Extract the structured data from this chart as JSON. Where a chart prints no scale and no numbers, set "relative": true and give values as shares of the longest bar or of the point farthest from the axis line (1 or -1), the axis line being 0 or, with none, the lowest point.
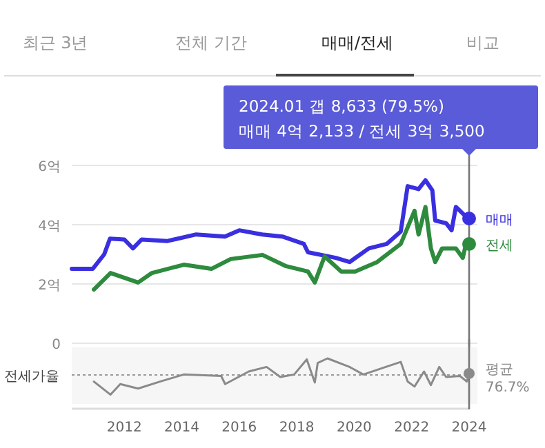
{
  "chart_data": [
    {
      "type": "line",
      "annotations": [
        "최근 3년",
        "전체 기간",
        "매매/전세",
        "비교",
        "2024.01  갭 8,633 (79.5%)",
        "매매 4억 2,133 / 전세 3억 3,500"
      ],
      "xlim": [
        2010.17,
        2024.0
      ],
      "ylim": [
        0,
        6
      ],
      "yticks": [
        {
          "value": 0,
          "label": "0"
        },
        {
          "value": 2,
          "label": "2억"
        },
        {
          "value": 4,
          "label": "4억"
        },
        {
          "value": 6,
          "label": "6억"
        }
      ],
      "tick_labels": "y",
      "grid": "y",
      "legend": false,
      "marker": "none",
      "line_style": "solid",
      "ref_lines": [
        {
          "axis": "x",
          "value": 2024.0,
          "color": "#777777"
        }
      ],
      "series": [
        {
          "name": "매매",
          "color": "#3a2fe0",
          "x": [
            2010.17,
            2010.9,
            2011.3,
            2011.5,
            2012.0,
            2012.3,
            2012.6,
            2013.5,
            2014.5,
            2015.5,
            2016.0,
            2016.8,
            2017.5,
            2018.25,
            2018.39,
            2019.36,
            2019.84,
            2020.51,
            2021.13,
            2021.62,
            2021.86,
            2022.24,
            2022.48,
            2022.72,
            2022.82,
            2023.2,
            2023.39,
            2023.54,
            2023.88,
            2024.0
          ],
          "values": [
            2.51,
            2.51,
            3.0,
            3.53,
            3.5,
            3.2,
            3.5,
            3.45,
            3.67,
            3.6,
            3.81,
            3.67,
            3.6,
            3.35,
            3.07,
            2.88,
            2.74,
            3.2,
            3.35,
            3.77,
            5.3,
            5.2,
            5.5,
            5.16,
            4.14,
            4.05,
            3.81,
            4.6,
            4.28,
            4.21
          ]
        },
        {
          "name": "전세",
          "color": "#2e8b3e",
          "x": [
            2010.94,
            2011.52,
            2012.48,
            2012.96,
            2014.07,
            2015.03,
            2015.7,
            2016.81,
            2017.63,
            2018.39,
            2018.63,
            2018.97,
            2019.55,
            2020.03,
            2020.8,
            2021.62,
            2022.1,
            2022.24,
            2022.48,
            2022.67,
            2022.82,
            2023.06,
            2023.54,
            2023.78,
            2023.88,
            2024.0
          ],
          "values": [
            1.81,
            2.37,
            2.05,
            2.37,
            2.65,
            2.51,
            2.84,
            2.98,
            2.6,
            2.42,
            2.05,
            2.93,
            2.42,
            2.42,
            2.74,
            3.35,
            4.47,
            3.67,
            4.6,
            3.2,
            2.74,
            3.2,
            3.2,
            2.88,
            3.3,
            3.35
          ]
        }
      ]
    },
    {
      "type": "line",
      "relative": true,
      "annotations": [
        "평균 76.7%"
      ],
      "xlim": [
        2010.17,
        2024.0
      ],
      "xticks": [
        2012,
        2014,
        2016,
        2018,
        2020,
        2022,
        2024
      ],
      "tick_labels": "x",
      "marker": "none",
      "line_style": "solid",
      "ref_lines": [
        {
          "axis": "y",
          "value": 0.67,
          "label": "전세가율",
          "color": "#999999",
          "line_style": "dotted"
        },
        {
          "axis": "x",
          "value": 2024.0,
          "color": "#777777"
        }
      ],
      "series": [
        {
          "color": "#8a8a8a",
          "x": [
            2010.94,
            2011.52,
            2011.86,
            2012.48,
            2013.3,
            2014.07,
            2015.37,
            2015.51,
            2016.33,
            2016.95,
            2017.43,
            2017.91,
            2018.35,
            2018.63,
            2018.73,
            2019.07,
            2019.84,
            2020.32,
            2020.99,
            2021.62,
            2021.86,
            2022.1,
            2022.43,
            2022.67,
            2022.96,
            2023.2,
            2023.68,
            2023.92,
            2024.0
          ],
          "values": [
            0.54,
            0.28,
            0.49,
            0.4,
            0.55,
            0.68,
            0.65,
            0.49,
            0.74,
            0.83,
            0.63,
            0.68,
            0.98,
            0.52,
            0.91,
            1.0,
            0.83,
            0.68,
            0.81,
            0.93,
            0.54,
            0.44,
            0.74,
            0.47,
            0.83,
            0.63,
            0.65,
            0.54,
            0.7
          ]
        }
      ]
    }
  ]
}
